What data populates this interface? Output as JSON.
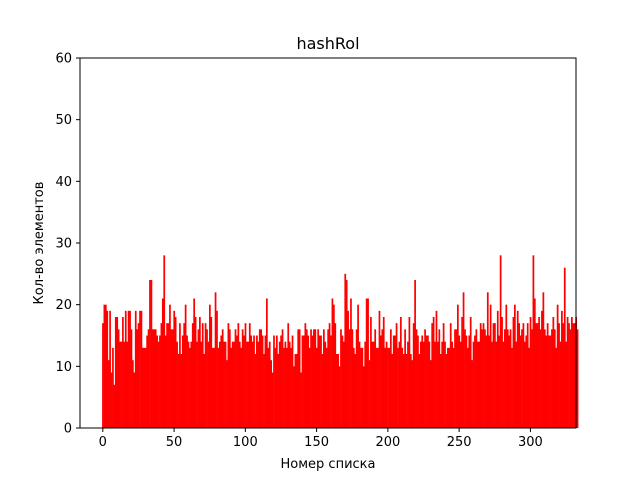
{
  "chart_data": {
    "type": "bar",
    "title": "hashRol",
    "xlabel": "Номер списка",
    "ylabel": "Кол-во элементов",
    "xlim": [
      -16,
      332
    ],
    "ylim": [
      0,
      60
    ],
    "x_ticks": [
      0,
      50,
      100,
      150,
      200,
      250,
      300
    ],
    "y_ticks": [
      0,
      10,
      20,
      30,
      40,
      50,
      60
    ],
    "grid": false,
    "bar_color": "#ff0000",
    "x_start": 0,
    "values": [
      17,
      20,
      20,
      19,
      11,
      19,
      9,
      13,
      7,
      18,
      18,
      16,
      14,
      14,
      18,
      14,
      19,
      14,
      19,
      19,
      16,
      11,
      9,
      19,
      16,
      17,
      19,
      19,
      13,
      13,
      13,
      15,
      16,
      24,
      24,
      16,
      16,
      16,
      15,
      14,
      15,
      17,
      21,
      28,
      15,
      17,
      17,
      20,
      16,
      16,
      19,
      18,
      14,
      12,
      17,
      12,
      15,
      17,
      20,
      15,
      14,
      13,
      14,
      17,
      21,
      18,
      14,
      16,
      18,
      14,
      17,
      12,
      17,
      16,
      14,
      20,
      18,
      13,
      13,
      22,
      19,
      13,
      14,
      15,
      16,
      14,
      14,
      11,
      17,
      16,
      13,
      14,
      14,
      16,
      15,
      17,
      14,
      13,
      16,
      15,
      17,
      14,
      14,
      17,
      15,
      14,
      15,
      12,
      15,
      14,
      16,
      16,
      15,
      12,
      15,
      21,
      13,
      14,
      11,
      9,
      15,
      13,
      15,
      12,
      14,
      15,
      16,
      13,
      14,
      13,
      17,
      14,
      13,
      15,
      10,
      12,
      12,
      16,
      16,
      9,
      15,
      15,
      17,
      16,
      15,
      13,
      16,
      15,
      16,
      16,
      13,
      16,
      15,
      15,
      12,
      16,
      14,
      13,
      16,
      17,
      15,
      21,
      20,
      17,
      12,
      12,
      10,
      16,
      15,
      14,
      25,
      24,
      19,
      16,
      21,
      16,
      13,
      12,
      16,
      20,
      14,
      13,
      13,
      10,
      14,
      21,
      21,
      11,
      18,
      14,
      14,
      16,
      13,
      13,
      19,
      15,
      16,
      18,
      13,
      14,
      13,
      13,
      16,
      12,
      15,
      15,
      17,
      13,
      14,
      18,
      13,
      12,
      16,
      12,
      14,
      18,
      12,
      11,
      17,
      24,
      16,
      15,
      12,
      14,
      15,
      14,
      16,
      15,
      15,
      14,
      11,
      17,
      18,
      14,
      19,
      14,
      16,
      12,
      14,
      17,
      14,
      12,
      13,
      13,
      17,
      14,
      13,
      16,
      16,
      20,
      15,
      14,
      18,
      22,
      16,
      15,
      13,
      15,
      18,
      11,
      14,
      15,
      16,
      14,
      14,
      17,
      16,
      17,
      16,
      15,
      22,
      15,
      20,
      14,
      17,
      17,
      14,
      19,
      15,
      28,
      18,
      14,
      16,
      20,
      16,
      15,
      16,
      13,
      18,
      20,
      14,
      19,
      17,
      15,
      16,
      17,
      14,
      15,
      17,
      13,
      18,
      16,
      28,
      21,
      17,
      17,
      18,
      16,
      19,
      22,
      16,
      15,
      17,
      15,
      15,
      16,
      18,
      16,
      13,
      20,
      17,
      14,
      19,
      17,
      26,
      14,
      18,
      17,
      16,
      18,
      17,
      17,
      18,
      16
    ]
  }
}
